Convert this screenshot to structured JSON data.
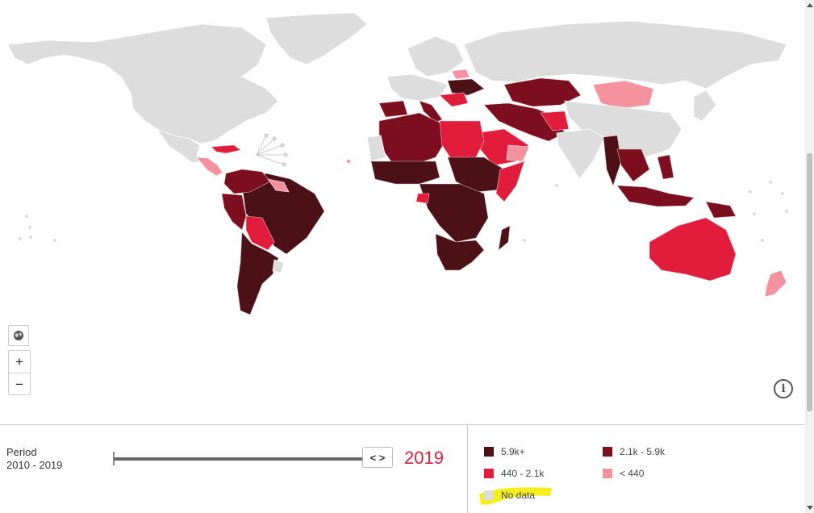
{
  "map": {
    "colors": {
      "no_data": "#dddddd",
      "bin_5_9k_plus": "#4b1117",
      "bin_2_1k_5_9k": "#7d0e1f",
      "bin_440_2_1k": "#e11d3b",
      "bin_lt_440": "#f4929f"
    }
  },
  "controls": {
    "globe_icon": "globe-icon",
    "zoom_in_label": "+",
    "zoom_out_label": "−",
    "info_label": "i"
  },
  "period": {
    "label": "Period",
    "range": "2010 - 2019",
    "handle_label": "< >",
    "selected_year": "2019"
  },
  "legend": {
    "items": [
      {
        "label": "5.9k+",
        "color": "#4b1117"
      },
      {
        "label": "2.1k - 5.9k",
        "color": "#7d0e1f"
      },
      {
        "label": "440 - 2.1k",
        "color": "#e11d3b"
      },
      {
        "label": "< 440",
        "color": "#f4929f"
      },
      {
        "label": "No data",
        "color": "#dddddd"
      }
    ],
    "highlight_color": "#f5ee1c"
  }
}
